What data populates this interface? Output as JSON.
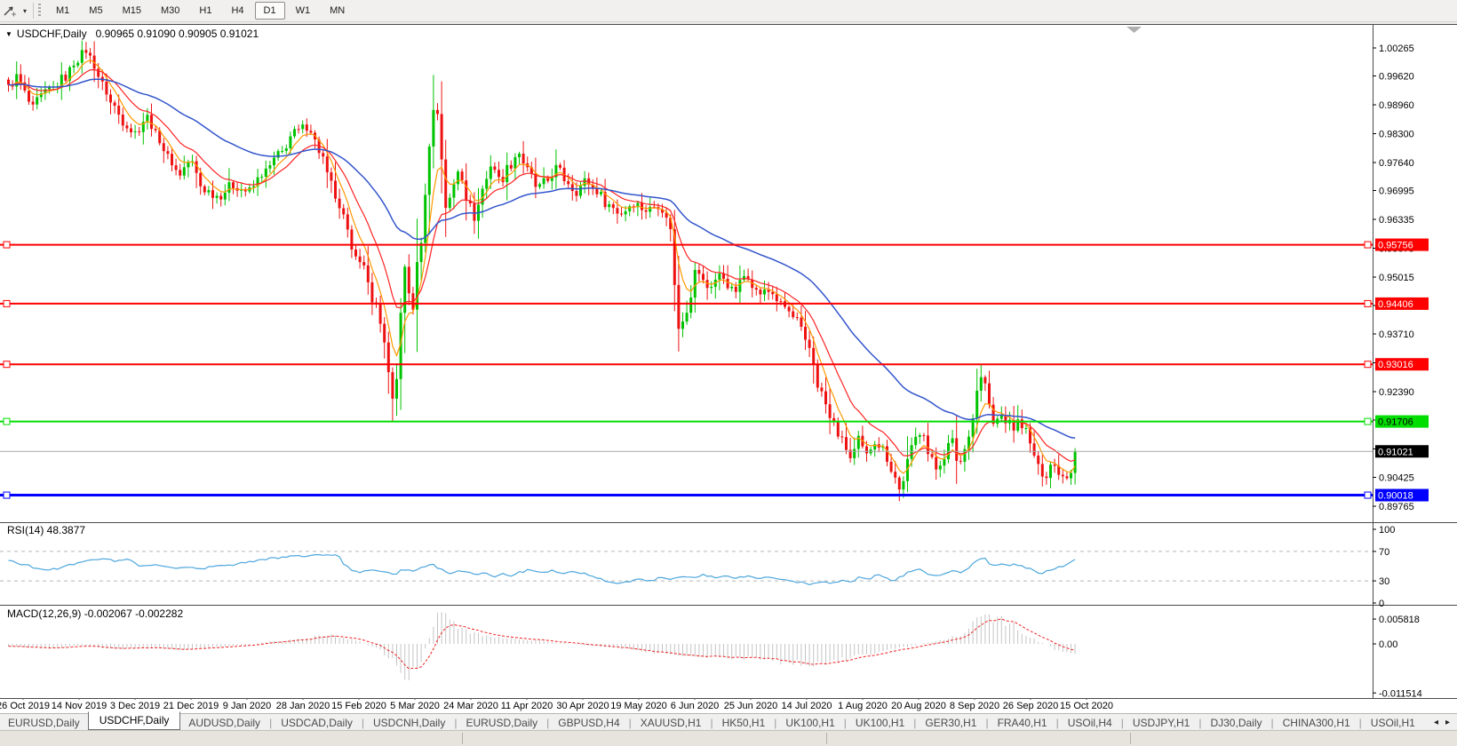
{
  "toolbar": {
    "timeframes": [
      "M1",
      "M5",
      "M15",
      "M30",
      "H1",
      "H4",
      "D1",
      "W1",
      "MN"
    ],
    "active_timeframe": "D1",
    "dropdown_icon": "▾"
  },
  "chart": {
    "collapse_icon": "▼",
    "symbol_title": "USDCHF,Daily",
    "ohlc": "0.90965 0.91090 0.90905 0.91021",
    "current_price_label": "0.91021"
  },
  "rsi": {
    "label": "RSI(14) 48.3877",
    "levels": [
      100,
      70,
      30,
      0
    ]
  },
  "macd": {
    "label": "MACD(12,26,9) -0.002067 -0.002282",
    "scale": [
      {
        "label": "0.005818",
        "value": 0.005818
      },
      {
        "label": "0.00",
        "value": 0
      },
      {
        "label": "-0.011514",
        "value": -0.011514
      }
    ]
  },
  "date_axis": {
    "labels": [
      "26 Oct 2019",
      "14 Nov 2019",
      "3 Dec 2019",
      "21 Dec 2019",
      "9 Jan 2020",
      "28 Jan 2020",
      "15 Feb 2020",
      "5 Mar 2020",
      "24 Mar 2020",
      "11 Apr 2020",
      "30 Apr 2020",
      "19 May 2020",
      "6 Jun 2020",
      "25 Jun 2020",
      "14 Jul 2020",
      "1 Aug 2020",
      "20 Aug 2020",
      "8 Sep 2020",
      "26 Sep 2020",
      "15 Oct 2020"
    ]
  },
  "tabs": {
    "items": [
      {
        "label": "EURUSD,Daily",
        "active": false
      },
      {
        "label": "USDCHF,Daily",
        "active": true
      },
      {
        "label": "AUDUSD,Daily",
        "active": false
      },
      {
        "label": "USDCAD,Daily",
        "active": false
      },
      {
        "label": "USDCNH,Daily",
        "active": false
      },
      {
        "label": "EURUSD,Daily",
        "active": false
      },
      {
        "label": "GBPUSD,H4",
        "active": false
      },
      {
        "label": "XAUUSD,H1",
        "active": false
      },
      {
        "label": "HK50,H1",
        "active": false
      },
      {
        "label": "UK100,H1",
        "active": false
      },
      {
        "label": "UK100,H1",
        "active": false
      },
      {
        "label": "GER30,H1",
        "active": false
      },
      {
        "label": "FRA40,H1",
        "active": false
      },
      {
        "label": "USOil,H4",
        "active": false
      },
      {
        "label": "USDJPY,H1",
        "active": false
      },
      {
        "label": "DJ30,Daily",
        "active": false
      },
      {
        "label": "CHINA300,H1",
        "active": false
      },
      {
        "label": "USOil,H1",
        "active": false
      }
    ],
    "scroll_left_icon": "◂",
    "scroll_right_icon": "▸"
  },
  "colors": {
    "candle_up": "#00c300",
    "candle_down": "#ee1111",
    "ma_fast": "#ff9900",
    "ma_mid": "#ff2222",
    "ma_slow": "#3355cc",
    "rsi_line": "#4da6dd",
    "rsi_level_dash": "#b8b8b8",
    "macd_hist": "#c4c4c4",
    "macd_signal": "#ee2222",
    "current_price_line": "#a9a9a9",
    "current_price_label_bg": "#000000",
    "pane_border": "#4a4a4a",
    "shift_triangle": "#b0b0b0"
  },
  "chart_data": {
    "type": "candlestick",
    "symbol": "USDCHF",
    "timeframe": "Daily",
    "visible_ohlc": {
      "open": 0.90965,
      "high": 0.9109,
      "low": 0.90905,
      "close": 0.91021
    },
    "current_price": 0.91021,
    "candles_count": 262,
    "y_ticks": [
      {
        "v": 1.00265
      },
      {
        "v": 0.9962
      },
      {
        "v": 0.9896
      },
      {
        "v": 0.983
      },
      {
        "v": 0.9764
      },
      {
        "v": 0.96995
      },
      {
        "v": 0.96335
      },
      {
        "v": 0.95675
      },
      {
        "v": 0.95015
      },
      {
        "v": 0.9436
      },
      {
        "v": 0.9371
      },
      {
        "v": 0.9305
      },
      {
        "v": 0.9239
      },
      {
        "v": 0.91735
      },
      {
        "v": 0.9108
      },
      {
        "v": 0.90425
      },
      {
        "v": 0.89765
      }
    ],
    "hlines": [
      {
        "price": 0.95756,
        "color": "#ff0000",
        "width": 2,
        "label_fg": "#ffffff"
      },
      {
        "price": 0.94406,
        "color": "#ff0000",
        "width": 2,
        "label_fg": "#ffffff"
      },
      {
        "price": 0.93016,
        "color": "#ff0000",
        "width": 2,
        "label_fg": "#ffffff"
      },
      {
        "price": 0.91706,
        "color": "#00dd00",
        "width": 2,
        "label_fg": "#000000"
      },
      {
        "price": 0.90018,
        "color": "#0000ff",
        "width": 3,
        "label_fg": "#ffffff"
      }
    ],
    "indicators": {
      "ma_fast_period": 6,
      "ma_mid_period": 14,
      "ma_slow_period": 45,
      "rsi_name": "RSI(14)",
      "rsi_last": 48.3877,
      "macd_name": "MACD(12,26,9)",
      "macd_last": -0.002067,
      "macd_signal_last": -0.002282
    },
    "price_path_anchors": [
      [
        0.0,
        0.9935
      ],
      [
        0.008,
        0.996
      ],
      [
        0.016,
        0.9922
      ],
      [
        0.022,
        0.9885
      ],
      [
        0.03,
        0.9915
      ],
      [
        0.04,
        0.9932
      ],
      [
        0.052,
        0.9958
      ],
      [
        0.065,
        1.0002
      ],
      [
        0.073,
        1.0022
      ],
      [
        0.08,
        0.9988
      ],
      [
        0.088,
        0.9942
      ],
      [
        0.098,
        0.9895
      ],
      [
        0.108,
        0.9858
      ],
      [
        0.118,
        0.9832
      ],
      [
        0.13,
        0.9868
      ],
      [
        0.14,
        0.9822
      ],
      [
        0.15,
        0.9775
      ],
      [
        0.16,
        0.9738
      ],
      [
        0.17,
        0.9768
      ],
      [
        0.183,
        0.9702
      ],
      [
        0.197,
        0.9688
      ],
      [
        0.21,
        0.9712
      ],
      [
        0.225,
        0.9698
      ],
      [
        0.24,
        0.9742
      ],
      [
        0.254,
        0.9782
      ],
      [
        0.268,
        0.9832
      ],
      [
        0.281,
        0.9848
      ],
      [
        0.292,
        0.979
      ],
      [
        0.302,
        0.9715
      ],
      [
        0.312,
        0.9645
      ],
      [
        0.322,
        0.9575
      ],
      [
        0.332,
        0.9522
      ],
      [
        0.342,
        0.9452
      ],
      [
        0.35,
        0.939
      ],
      [
        0.357,
        0.9275
      ],
      [
        0.362,
        0.9185
      ],
      [
        0.367,
        0.9415
      ],
      [
        0.371,
        0.9522
      ],
      [
        0.375,
        0.9465
      ],
      [
        0.379,
        0.9432
      ],
      [
        0.385,
        0.9555
      ],
      [
        0.391,
        0.9685
      ],
      [
        0.397,
        0.9875
      ],
      [
        0.401,
        0.9898
      ],
      [
        0.406,
        0.9775
      ],
      [
        0.411,
        0.965
      ],
      [
        0.417,
        0.9712
      ],
      [
        0.423,
        0.9755
      ],
      [
        0.429,
        0.9685
      ],
      [
        0.437,
        0.9638
      ],
      [
        0.445,
        0.9705
      ],
      [
        0.453,
        0.9762
      ],
      [
        0.461,
        0.9722
      ],
      [
        0.47,
        0.9758
      ],
      [
        0.478,
        0.9788
      ],
      [
        0.487,
        0.9745
      ],
      [
        0.496,
        0.9705
      ],
      [
        0.505,
        0.9722
      ],
      [
        0.514,
        0.9752
      ],
      [
        0.523,
        0.9722
      ],
      [
        0.532,
        0.9698
      ],
      [
        0.541,
        0.9722
      ],
      [
        0.551,
        0.97
      ],
      [
        0.562,
        0.9668
      ],
      [
        0.574,
        0.9648
      ],
      [
        0.586,
        0.9672
      ],
      [
        0.598,
        0.9655
      ],
      [
        0.61,
        0.9668
      ],
      [
        0.62,
        0.9622
      ],
      [
        0.628,
        0.9385
      ],
      [
        0.636,
        0.9428
      ],
      [
        0.645,
        0.9518
      ],
      [
        0.655,
        0.9478
      ],
      [
        0.668,
        0.9505
      ],
      [
        0.68,
        0.9468
      ],
      [
        0.692,
        0.9508
      ],
      [
        0.703,
        0.9465
      ],
      [
        0.714,
        0.9468
      ],
      [
        0.726,
        0.9435
      ],
      [
        0.738,
        0.9405
      ],
      [
        0.75,
        0.934
      ],
      [
        0.762,
        0.9235
      ],
      [
        0.772,
        0.917
      ],
      [
        0.782,
        0.9125
      ],
      [
        0.79,
        0.9085
      ],
      [
        0.797,
        0.9128
      ],
      [
        0.804,
        0.909
      ],
      [
        0.812,
        0.9128
      ],
      [
        0.82,
        0.9108
      ],
      [
        0.828,
        0.9062
      ],
      [
        0.836,
        0.9012
      ],
      [
        0.843,
        0.9078
      ],
      [
        0.85,
        0.9132
      ],
      [
        0.857,
        0.9155
      ],
      [
        0.863,
        0.9092
      ],
      [
        0.87,
        0.9062
      ],
      [
        0.877,
        0.9092
      ],
      [
        0.884,
        0.9128
      ],
      [
        0.891,
        0.9072
      ],
      [
        0.897,
        0.9108
      ],
      [
        0.903,
        0.9172
      ],
      [
        0.91,
        0.9262
      ],
      [
        0.914,
        0.9278
      ],
      [
        0.919,
        0.9205
      ],
      [
        0.924,
        0.9162
      ],
      [
        0.93,
        0.9185
      ],
      [
        0.936,
        0.9172
      ],
      [
        0.942,
        0.9155
      ],
      [
        0.948,
        0.9172
      ],
      [
        0.954,
        0.9148
      ],
      [
        0.96,
        0.9102
      ],
      [
        0.966,
        0.9062
      ],
      [
        0.972,
        0.9048
      ],
      [
        0.978,
        0.9075
      ],
      [
        0.984,
        0.9058
      ],
      [
        0.99,
        0.9045
      ],
      [
        0.995,
        0.9052
      ],
      [
        1.0,
        0.9102
      ]
    ],
    "rsi_anchors": [
      [
        0.0,
        57
      ],
      [
        0.015,
        52
      ],
      [
        0.03,
        45
      ],
      [
        0.045,
        46
      ],
      [
        0.06,
        52
      ],
      [
        0.075,
        58
      ],
      [
        0.09,
        61
      ],
      [
        0.1,
        57
      ],
      [
        0.112,
        59
      ],
      [
        0.125,
        50
      ],
      [
        0.14,
        52
      ],
      [
        0.155,
        48
      ],
      [
        0.168,
        49
      ],
      [
        0.18,
        47
      ],
      [
        0.195,
        50
      ],
      [
        0.21,
        52
      ],
      [
        0.222,
        55
      ],
      [
        0.235,
        58
      ],
      [
        0.25,
        61
      ],
      [
        0.265,
        63
      ],
      [
        0.28,
        64
      ],
      [
        0.295,
        65
      ],
      [
        0.308,
        66
      ],
      [
        0.315,
        52
      ],
      [
        0.322,
        44
      ],
      [
        0.33,
        42
      ],
      [
        0.34,
        45
      ],
      [
        0.35,
        43
      ],
      [
        0.362,
        38
      ],
      [
        0.37,
        46
      ],
      [
        0.378,
        44
      ],
      [
        0.388,
        48
      ],
      [
        0.398,
        52
      ],
      [
        0.406,
        45
      ],
      [
        0.414,
        40
      ],
      [
        0.422,
        44
      ],
      [
        0.43,
        42
      ],
      [
        0.438,
        38
      ],
      [
        0.446,
        42
      ],
      [
        0.455,
        36
      ],
      [
        0.463,
        40
      ],
      [
        0.472,
        37
      ],
      [
        0.48,
        42
      ],
      [
        0.49,
        45
      ],
      [
        0.5,
        42
      ],
      [
        0.51,
        44
      ],
      [
        0.52,
        40
      ],
      [
        0.53,
        43
      ],
      [
        0.54,
        40
      ],
      [
        0.552,
        34
      ],
      [
        0.562,
        28
      ],
      [
        0.572,
        26
      ],
      [
        0.582,
        29
      ],
      [
        0.592,
        33
      ],
      [
        0.602,
        30
      ],
      [
        0.612,
        35
      ],
      [
        0.622,
        32
      ],
      [
        0.632,
        36
      ],
      [
        0.642,
        34
      ],
      [
        0.652,
        38
      ],
      [
        0.662,
        35
      ],
      [
        0.672,
        38
      ],
      [
        0.682,
        34
      ],
      [
        0.692,
        36
      ],
      [
        0.702,
        33
      ],
      [
        0.712,
        35
      ],
      [
        0.722,
        32
      ],
      [
        0.732,
        30
      ],
      [
        0.742,
        28
      ],
      [
        0.752,
        25
      ],
      [
        0.762,
        29
      ],
      [
        0.772,
        27
      ],
      [
        0.782,
        31
      ],
      [
        0.79,
        28
      ],
      [
        0.798,
        35
      ],
      [
        0.806,
        32
      ],
      [
        0.814,
        38
      ],
      [
        0.822,
        34
      ],
      [
        0.83,
        31
      ],
      [
        0.838,
        37
      ],
      [
        0.846,
        43
      ],
      [
        0.854,
        46
      ],
      [
        0.862,
        40
      ],
      [
        0.87,
        37
      ],
      [
        0.878,
        41
      ],
      [
        0.886,
        45
      ],
      [
        0.893,
        42
      ],
      [
        0.9,
        48
      ],
      [
        0.908,
        58
      ],
      [
        0.914,
        62
      ],
      [
        0.92,
        54
      ],
      [
        0.926,
        50
      ],
      [
        0.932,
        53
      ],
      [
        0.938,
        51
      ],
      [
        0.944,
        52
      ],
      [
        0.95,
        50
      ],
      [
        0.956,
        47
      ],
      [
        0.962,
        43
      ],
      [
        0.968,
        40
      ],
      [
        0.974,
        43
      ],
      [
        0.98,
        46
      ],
      [
        0.986,
        49
      ],
      [
        0.992,
        53
      ],
      [
        1.0,
        58
      ]
    ],
    "macd_anchors": [
      [
        0.0,
        -0.0006
      ],
      [
        0.04,
        -0.001
      ],
      [
        0.07,
        -0.0004
      ],
      [
        0.1,
        -0.0012
      ],
      [
        0.13,
        -0.0009
      ],
      [
        0.16,
        -0.0013
      ],
      [
        0.19,
        -0.0008
      ],
      [
        0.22,
        -0.0003
      ],
      [
        0.25,
        0.0006
      ],
      [
        0.28,
        0.0014
      ],
      [
        0.3,
        0.0021
      ],
      [
        0.32,
        0.0012
      ],
      [
        0.345,
        -0.0008
      ],
      [
        0.36,
        -0.0038
      ],
      [
        0.372,
        -0.0078
      ],
      [
        0.385,
        -0.005
      ],
      [
        0.395,
        0.0015
      ],
      [
        0.402,
        0.0075
      ],
      [
        0.41,
        0.0068
      ],
      [
        0.422,
        0.004
      ],
      [
        0.44,
        0.0022
      ],
      [
        0.465,
        0.0013
      ],
      [
        0.49,
        0.0009
      ],
      [
        0.52,
        0.0002
      ],
      [
        0.55,
        -0.0005
      ],
      [
        0.58,
        -0.0012
      ],
      [
        0.61,
        -0.0022
      ],
      [
        0.64,
        -0.0028
      ],
      [
        0.67,
        -0.003
      ],
      [
        0.7,
        -0.0035
      ],
      [
        0.73,
        -0.0042
      ],
      [
        0.755,
        -0.0046
      ],
      [
        0.78,
        -0.0038
      ],
      [
        0.81,
        -0.0022
      ],
      [
        0.84,
        -0.0008
      ],
      [
        0.865,
        0.0004
      ],
      [
        0.89,
        0.0018
      ],
      [
        0.91,
        0.0058
      ],
      [
        0.925,
        0.0062
      ],
      [
        0.94,
        0.0045
      ],
      [
        0.955,
        0.0018
      ],
      [
        0.97,
        0.0002
      ],
      [
        0.985,
        -0.0016
      ],
      [
        1.0,
        -0.0021
      ]
    ]
  }
}
